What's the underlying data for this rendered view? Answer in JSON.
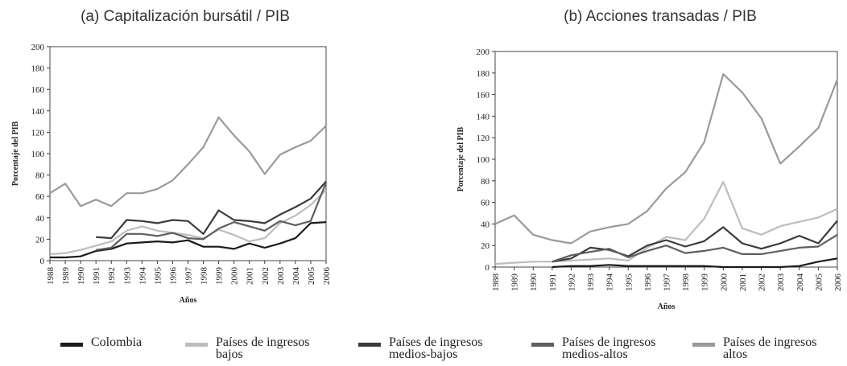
{
  "chart_data": [
    {
      "type": "line",
      "title": "(a) Capitalización bursátil / PIB",
      "ylabel": "Porcentaje del PIB",
      "xlabel": "Años",
      "categories": [
        "1988",
        "1989",
        "1990",
        "1991",
        "1992",
        "1993",
        "1994",
        "1995",
        "1996",
        "1997",
        "1998",
        "1999",
        "2000",
        "2001",
        "2002",
        "2003",
        "2004",
        "2005",
        "2006"
      ],
      "ylim": [
        0,
        200
      ],
      "yticks": [
        0,
        20,
        40,
        60,
        80,
        100,
        120,
        140,
        160,
        180,
        200
      ],
      "series": [
        {
          "name": "Colombia",
          "color": "#1a1a1a",
          "values": [
            3,
            3,
            4,
            9,
            11,
            16,
            17,
            18,
            17,
            19,
            13,
            13,
            11,
            16,
            12,
            16,
            21,
            35,
            36
          ]
        },
        {
          "name": "Países de ingresos bajos",
          "color": "#bdbdbd",
          "values": [
            6,
            7,
            10,
            14,
            18,
            28,
            32,
            28,
            26,
            24,
            21,
            29,
            24,
            18,
            21,
            35,
            42,
            52,
            66
          ]
        },
        {
          "name": "Países de ingresos medios-bajos",
          "color": "#3a3a3a",
          "values": [
            null,
            null,
            null,
            22,
            21,
            38,
            37,
            35,
            38,
            37,
            25,
            47,
            38,
            37,
            35,
            43,
            50,
            58,
            74
          ]
        },
        {
          "name": "Países de ingresos medios-altos",
          "color": "#5e5e5e",
          "values": [
            null,
            null,
            null,
            10,
            12,
            25,
            25,
            23,
            26,
            21,
            20,
            30,
            36,
            32,
            28,
            37,
            33,
            37,
            73
          ]
        },
        {
          "name": "Países de ingresos altos",
          "color": "#9a9a9a",
          "values": [
            63,
            72,
            51,
            57,
            51,
            63,
            63,
            67,
            75,
            90,
            106,
            134,
            117,
            102,
            81,
            99,
            106,
            112,
            126
          ]
        }
      ]
    },
    {
      "type": "line",
      "title": "(b) Acciones transadas / PIB",
      "ylabel": "Porcentaje del PIB",
      "xlabel": "Años",
      "categories": [
        "1988",
        "1989",
        "1990",
        "1991",
        "1992",
        "1993",
        "1994",
        "1995",
        "1996",
        "1997",
        "1998",
        "1999",
        "2000",
        "2001",
        "2002",
        "2003",
        "2004",
        "2005",
        "2006"
      ],
      "ylim": [
        0,
        200
      ],
      "yticks": [
        0,
        20,
        40,
        60,
        80,
        100,
        120,
        140,
        160,
        180,
        200
      ],
      "series": [
        {
          "name": "Colombia",
          "color": "#1a1a1a",
          "values": [
            null,
            null,
            null,
            0,
            1,
            1,
            2,
            1,
            1,
            1,
            1,
            1,
            0,
            0,
            0,
            0,
            1,
            5,
            8
          ]
        },
        {
          "name": "Países de ingresos bajos",
          "color": "#bdbdbd",
          "values": [
            3,
            4,
            5,
            5,
            6,
            7,
            8,
            6,
            18,
            28,
            25,
            45,
            79,
            36,
            30,
            38,
            42,
            46,
            54
          ]
        },
        {
          "name": "Países de ingresos medios-bajos",
          "color": "#3a3a3a",
          "values": [
            null,
            null,
            null,
            5,
            8,
            18,
            16,
            10,
            20,
            25,
            19,
            24,
            37,
            22,
            17,
            22,
            29,
            22,
            43
          ]
        },
        {
          "name": "Países de ingresos medios-altos",
          "color": "#5e5e5e",
          "values": [
            null,
            null,
            null,
            5,
            11,
            14,
            17,
            9,
            15,
            20,
            13,
            15,
            18,
            12,
            12,
            15,
            18,
            19,
            30
          ]
        },
        {
          "name": "Países de ingresos altos",
          "color": "#9a9a9a",
          "values": [
            40,
            48,
            30,
            25,
            22,
            33,
            37,
            40,
            52,
            73,
            88,
            116,
            179,
            162,
            138,
            96,
            112,
            129,
            174
          ]
        }
      ]
    }
  ]
}
